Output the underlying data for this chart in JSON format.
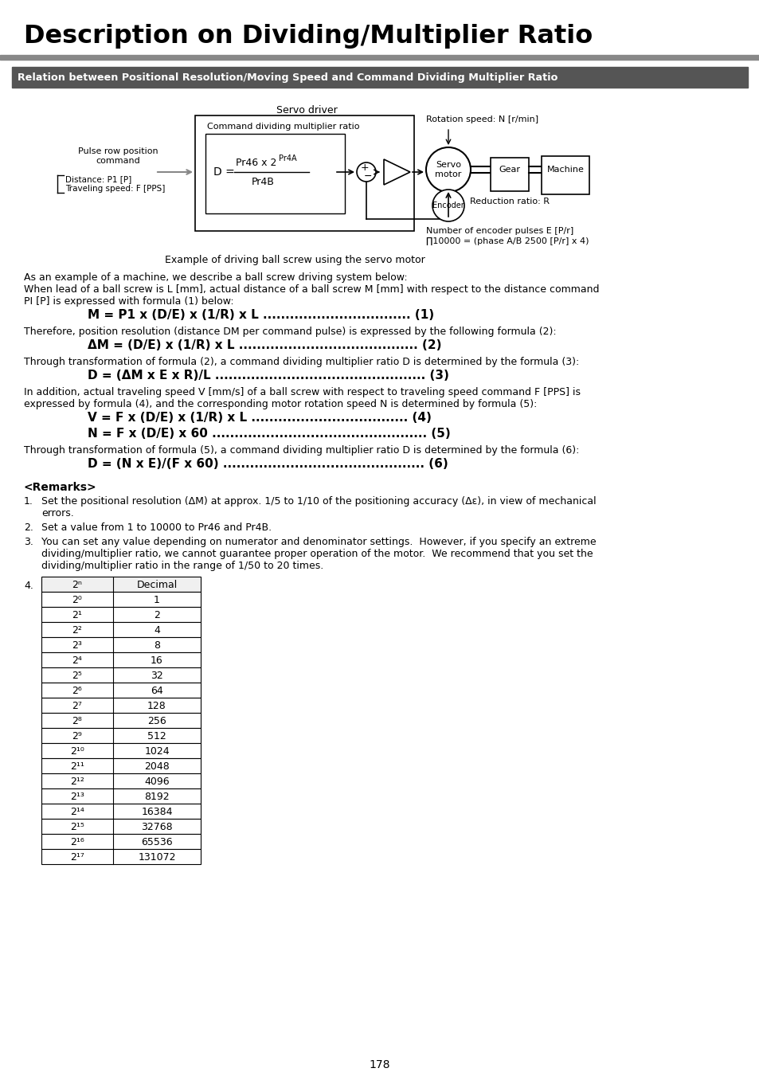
{
  "title": "Description on Dividing/Multiplier Ratio",
  "subtitle": "Relation between Positional Resolution/Moving Speed and Command Dividing Multiplier Ratio",
  "page_number": "178",
  "background": "#ffffff",
  "table_rows": [
    [
      "2⁰",
      "1"
    ],
    [
      "2¹",
      "2"
    ],
    [
      "2²",
      "4"
    ],
    [
      "2³",
      "8"
    ],
    [
      "2⁴",
      "16"
    ],
    [
      "2⁵",
      "32"
    ],
    [
      "2⁶",
      "64"
    ],
    [
      "2⁷",
      "128"
    ],
    [
      "2⁸",
      "256"
    ],
    [
      "2⁹",
      "512"
    ],
    [
      "2¹⁰",
      "1024"
    ],
    [
      "2¹¹",
      "2048"
    ],
    [
      "2¹²",
      "4096"
    ],
    [
      "2¹³",
      "8192"
    ],
    [
      "2¹⁴",
      "16384"
    ],
    [
      "2¹⁵",
      "32768"
    ],
    [
      "2¹⁶",
      "65536"
    ],
    [
      "2¹⁷",
      "131072"
    ]
  ],
  "subtitle_color": "#555555",
  "line_color": "#888888"
}
